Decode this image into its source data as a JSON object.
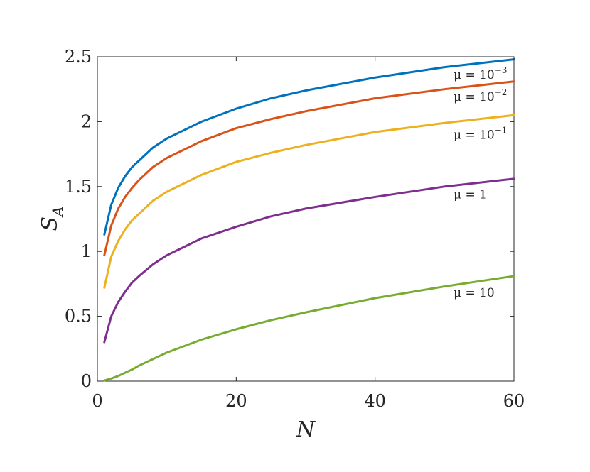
{
  "chart_data": {
    "type": "line",
    "xlabel": "N",
    "ylabel": "S",
    "ylabel_sub": "A",
    "xlim": [
      0,
      60
    ],
    "ylim": [
      0,
      2.5
    ],
    "xticks": [
      0,
      20,
      40,
      60
    ],
    "yticks": [
      0,
      0.5,
      1,
      1.5,
      2,
      2.5
    ],
    "xtick_labels": [
      "0",
      "20",
      "40",
      "60"
    ],
    "ytick_labels": [
      "0",
      "0.5",
      "1",
      "1.5",
      "2",
      "2.5"
    ],
    "grid": false,
    "x": [
      1,
      2,
      3,
      4,
      5,
      6,
      8,
      10,
      15,
      20,
      25,
      30,
      40,
      50,
      60
    ],
    "series": [
      {
        "label_base": "μ = 10",
        "label_exp": "−3",
        "color": "#0072BD",
        "values": [
          1.13,
          1.36,
          1.49,
          1.58,
          1.65,
          1.7,
          1.8,
          1.87,
          2.0,
          2.1,
          2.18,
          2.24,
          2.34,
          2.42,
          2.48
        ]
      },
      {
        "label_base": "μ = 10",
        "label_exp": "−2",
        "color": "#D95319",
        "values": [
          0.97,
          1.2,
          1.33,
          1.42,
          1.49,
          1.55,
          1.65,
          1.72,
          1.85,
          1.95,
          2.02,
          2.08,
          2.18,
          2.25,
          2.31
        ]
      },
      {
        "label_base": "μ = 10",
        "label_exp": "−1",
        "color": "#EDB120",
        "values": [
          0.72,
          0.96,
          1.08,
          1.17,
          1.24,
          1.29,
          1.39,
          1.46,
          1.59,
          1.69,
          1.76,
          1.82,
          1.92,
          1.99,
          2.05
        ]
      },
      {
        "label_base": "μ = 1",
        "label_exp": "",
        "color": "#7E2F8E",
        "values": [
          0.3,
          0.5,
          0.61,
          0.69,
          0.76,
          0.81,
          0.9,
          0.97,
          1.1,
          1.19,
          1.27,
          1.33,
          1.42,
          1.5,
          1.56
        ]
      },
      {
        "label_base": "μ = 10",
        "label_exp": "",
        "color": "#77AC30",
        "values": [
          0.005,
          0.02,
          0.04,
          0.065,
          0.09,
          0.12,
          0.17,
          0.22,
          0.32,
          0.4,
          0.47,
          0.53,
          0.64,
          0.73,
          0.81
        ]
      }
    ]
  }
}
